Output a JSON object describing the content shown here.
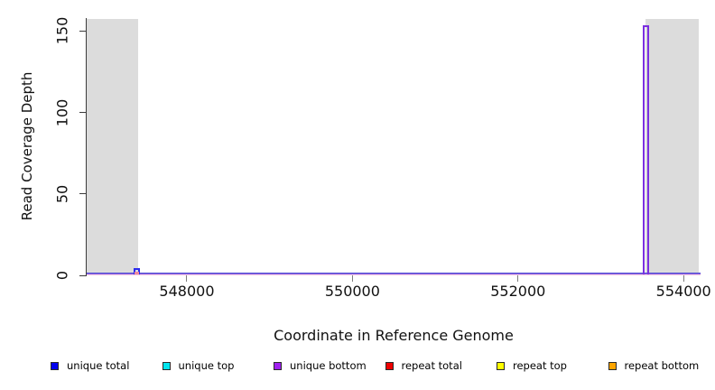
{
  "axes": {
    "y_label": "Read Coverage Depth",
    "x_label": "Coordinate in Reference Genome"
  },
  "legend": {
    "position": "bottom",
    "items": [
      {
        "label": "unique total",
        "color": "#0000EE"
      },
      {
        "label": "unique top",
        "color": "#00E5EE"
      },
      {
        "label": "unique bottom",
        "color": "#A020F0"
      },
      {
        "label": "repeat total",
        "color": "#EE0000"
      },
      {
        "label": "repeat top",
        "color": "#FFFF00"
      },
      {
        "label": "repeat bottom",
        "color": "#FFA500"
      }
    ]
  },
  "chart_data": {
    "type": "line",
    "title": "",
    "xlabel": "Coordinate in Reference Genome",
    "ylabel": "Read Coverage Depth",
    "xlim": [
      546790,
      554205
    ],
    "ylim": [
      0,
      158
    ],
    "x_ticks": [
      548000,
      550000,
      552000,
      554000
    ],
    "y_ticks": [
      0,
      50,
      100,
      150
    ],
    "grid": false,
    "plot_box_color_top": "#a3a3a3",
    "axis_color": "#3c3c3c",
    "masked_region_color": "#dcdcdc",
    "masked_regions": [
      {
        "name": "left-masked-region",
        "x1": 546790,
        "x2": 547410
      },
      {
        "name": "right-masked-region",
        "x1": 553540,
        "x2": 554185
      }
    ],
    "baselines": [
      {
        "color": "#4646ce",
        "offset": 2
      },
      {
        "color": "#9b6fe8",
        "offset": 1
      },
      {
        "color": "#f0c8de",
        "offset": 0
      }
    ],
    "series": [
      {
        "name": "unique total",
        "color": "#2b2bee",
        "base_value": 0,
        "spikes": [
          {
            "x1": 547360,
            "x2": 547432,
            "value": 4,
            "style": "outline"
          }
        ]
      },
      {
        "name": "unique top",
        "color": "#00e5ee",
        "base_value": 0,
        "spikes": []
      },
      {
        "name": "unique bottom",
        "color": "#7b2fe0",
        "base_value": 0,
        "spikes": [
          {
            "x1": 553508,
            "x2": 553582,
            "value": 153,
            "style": "outline"
          }
        ]
      },
      {
        "name": "repeat total",
        "color": "#ef8a9e",
        "base_value": 0,
        "spikes": [
          {
            "x1": 547372,
            "x2": 547420,
            "value": 1.5,
            "style": "filled"
          }
        ]
      },
      {
        "name": "repeat top",
        "color": "#ffff00",
        "base_value": 0,
        "spikes": []
      },
      {
        "name": "repeat bottom",
        "color": "#ffa500",
        "base_value": 0,
        "spikes": []
      }
    ]
  }
}
